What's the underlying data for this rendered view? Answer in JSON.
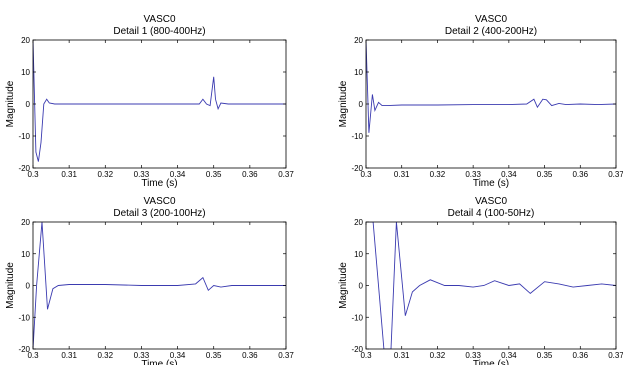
{
  "chart_data": [
    {
      "type": "line",
      "title": "VASC0",
      "subtitle": "Detail 1 (800-400Hz)",
      "xlabel": "Time (s)",
      "ylabel": "Magnitude",
      "xlim": [
        0.3,
        0.37
      ],
      "ylim": [
        -20,
        20
      ],
      "xticks": [
        "0.3",
        "0.31",
        "0.32",
        "0.33",
        "0.34",
        "0.35",
        "0.36",
        "0.37"
      ],
      "yticks": [
        "20",
        "10",
        "0",
        "-10",
        "-20"
      ],
      "grid": false,
      "series": [
        {
          "color": "#3b3bb0",
          "x": [
            0.3,
            0.3008,
            0.3015,
            0.3022,
            0.303,
            0.3038,
            0.3045,
            0.306,
            0.31,
            0.32,
            0.33,
            0.34,
            0.346,
            0.347,
            0.348,
            0.349,
            0.35,
            0.3505,
            0.3512,
            0.352,
            0.354,
            0.36,
            0.37
          ],
          "y": [
            20,
            -15,
            -18,
            -12,
            0,
            1.5,
            0.3,
            0,
            0,
            0,
            0,
            0,
            0,
            1.5,
            0,
            -0.5,
            8.5,
            1.5,
            -1.5,
            0.3,
            0,
            0,
            0
          ]
        }
      ]
    },
    {
      "type": "line",
      "title": "VASC0",
      "subtitle": "Detail 2 (400-200Hz)",
      "xlabel": "Time (s)",
      "ylabel": "Magnitude",
      "xlim": [
        0.3,
        0.37
      ],
      "ylim": [
        -20,
        20
      ],
      "xticks": [
        "0.3",
        "0.31",
        "0.32",
        "0.33",
        "0.34",
        "0.35",
        "0.36",
        "0.37"
      ],
      "yticks": [
        "20",
        "10",
        "0",
        "-10",
        "-20"
      ],
      "grid": false,
      "series": [
        {
          "color": "#3b3bb0",
          "x": [
            0.3,
            0.3008,
            0.3018,
            0.3025,
            0.3035,
            0.3045,
            0.306,
            0.31,
            0.32,
            0.33,
            0.34,
            0.345,
            0.347,
            0.348,
            0.3495,
            0.3505,
            0.352,
            0.354,
            0.356,
            0.36,
            0.365,
            0.37
          ],
          "y": [
            20,
            -9,
            3,
            -2,
            0.5,
            -0.5,
            -0.5,
            -0.3,
            -0.3,
            -0.2,
            -0.2,
            0,
            1.5,
            -1,
            1.5,
            1.3,
            -0.5,
            0.2,
            -0.2,
            0,
            -0.2,
            0
          ]
        }
      ]
    },
    {
      "type": "line",
      "title": "VASC0",
      "subtitle": "Detail 3 (200-100Hz)",
      "xlabel": "Time (s)",
      "ylabel": "Magnitude",
      "xlim": [
        0.3,
        0.37
      ],
      "ylim": [
        -20,
        20
      ],
      "xticks": [
        "0.3",
        "0.31",
        "0.32",
        "0.33",
        "0.34",
        "0.35",
        "0.36",
        "0.37"
      ],
      "yticks": [
        "20",
        "10",
        "0",
        "-10",
        "-20"
      ],
      "grid": false,
      "series": [
        {
          "color": "#3b3bb0",
          "x": [
            0.3,
            0.301,
            0.3025,
            0.304,
            0.3055,
            0.307,
            0.31,
            0.32,
            0.33,
            0.34,
            0.345,
            0.347,
            0.3485,
            0.35,
            0.352,
            0.355,
            0.36,
            0.37
          ],
          "y": [
            -20,
            0,
            20,
            -7.5,
            -1,
            0,
            0.3,
            0.3,
            0,
            0,
            0.5,
            2.5,
            -1.5,
            0,
            -0.5,
            0,
            0,
            0
          ]
        }
      ]
    },
    {
      "type": "line",
      "title": "VASC0",
      "subtitle": "Detail 4 (100-50Hz)",
      "xlabel": "Time (s)",
      "ylabel": "Magnitude",
      "xlim": [
        0.3,
        0.37
      ],
      "ylim": [
        -20,
        20
      ],
      "xticks": [
        "0.3",
        "0.31",
        "0.32",
        "0.33",
        "0.34",
        "0.35",
        "0.36",
        "0.37"
      ],
      "yticks": [
        "20",
        "10",
        "0",
        "-10",
        "-20"
      ],
      "grid": false,
      "series": [
        {
          "color": "#3b3bb0",
          "x": [
            0.3,
            0.302,
            0.305,
            0.307,
            0.3085,
            0.311,
            0.313,
            0.315,
            0.318,
            0.322,
            0.326,
            0.33,
            0.333,
            0.336,
            0.34,
            0.343,
            0.346,
            0.35,
            0.354,
            0.358,
            0.362,
            0.366,
            0.37
          ],
          "y": [
            20,
            20,
            -20,
            -20,
            20,
            -9.5,
            -2,
            0,
            1.8,
            0,
            0,
            -0.5,
            0,
            1.5,
            0,
            0.5,
            -2.5,
            1.2,
            0.5,
            -0.5,
            0,
            0.5,
            0
          ]
        }
      ]
    }
  ]
}
